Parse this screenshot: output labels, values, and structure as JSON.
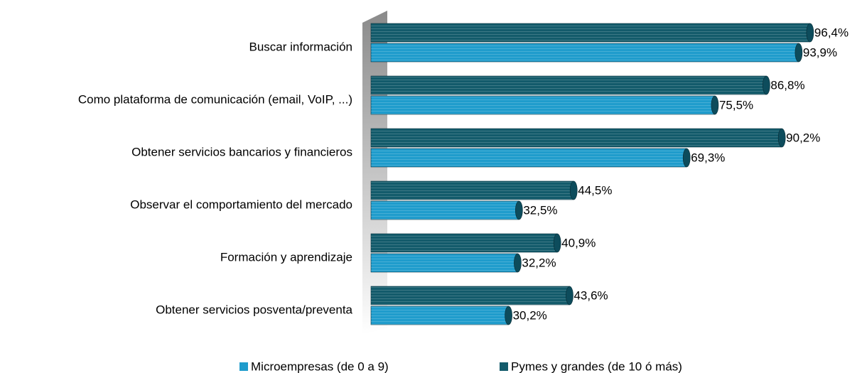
{
  "chart_data": {
    "type": "bar",
    "orientation": "horizontal",
    "categories": [
      "Buscar información",
      "Como plataforma de comunicación (email, VoIP, ...)",
      "Obtener servicios bancarios y financieros",
      "Observar el comportamiento del mercado",
      "Formación y aprendizaje",
      "Obtener servicios posventa/preventa"
    ],
    "series": [
      {
        "name": "Microempresas (de 0 a 9)",
        "color": "#1f9ccc",
        "values": [
          93.9,
          75.5,
          69.3,
          32.5,
          32.2,
          30.2
        ],
        "value_labels": [
          "93,9%",
          "75,5%",
          "69,3%",
          "32,5%",
          "32,2%",
          "30,2%"
        ]
      },
      {
        "name": "Pymes y grandes (de 10 ó más)",
        "color": "#135b6b",
        "values": [
          96.4,
          86.8,
          90.2,
          44.5,
          40.9,
          43.6
        ],
        "value_labels": [
          "96,4%",
          "86,8%",
          "90,2%",
          "44,5%",
          "40,9%",
          "43,6%"
        ]
      }
    ],
    "xlim": [
      0,
      100
    ],
    "legend": "bottom"
  }
}
